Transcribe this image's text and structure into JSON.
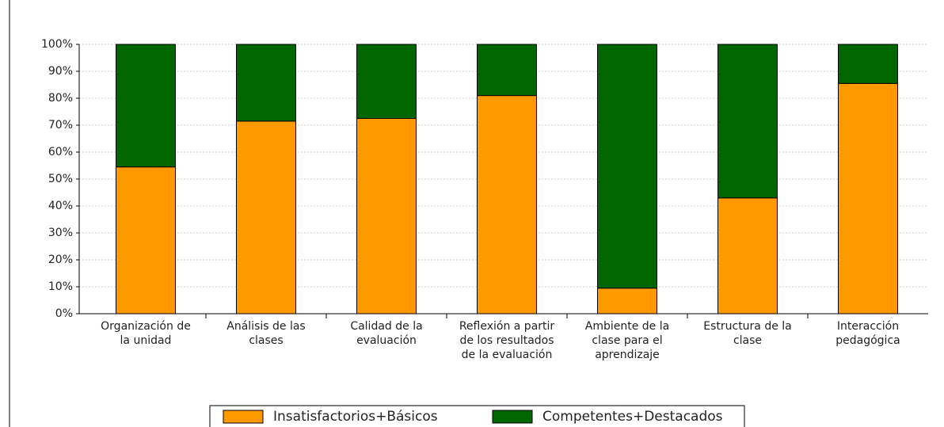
{
  "chart_data": {
    "type": "stacked_bar",
    "categories": [
      "Organización de la unidad",
      "Análisis de las clases",
      "Calidad de la evaluación",
      "Reflexión a partir de los resultados de la evaluación",
      "Ambiente de la clase para el aprendizaje",
      "Estructura de la clase",
      "Interacción pedagógica"
    ],
    "series": [
      {
        "name": "Insatisfactorios+Básicos",
        "color": "#ff9900",
        "values": [
          54.5,
          71.5,
          72.5,
          81,
          9.5,
          43,
          85.5
        ]
      },
      {
        "name": "Competentes+Destacados",
        "color": "#006600",
        "values": [
          45.5,
          28.5,
          27.5,
          19,
          90.5,
          57,
          14.5
        ]
      }
    ],
    "ylim": [
      0,
      100
    ],
    "yticks": [
      {
        "value": 0,
        "label": "0%"
      },
      {
        "value": 10,
        "label": "10%"
      },
      {
        "value": 20,
        "label": "20%"
      },
      {
        "value": 30,
        "label": "30%"
      },
      {
        "value": 40,
        "label": "40%"
      },
      {
        "value": 50,
        "label": "50%"
      },
      {
        "value": 60,
        "label": "60%"
      },
      {
        "value": 70,
        "label": "70%"
      },
      {
        "value": 80,
        "label": "80%"
      },
      {
        "value": 90,
        "label": "90%"
      },
      {
        "value": 100,
        "label": "100%"
      }
    ],
    "grid": true,
    "legend": "bottom"
  }
}
